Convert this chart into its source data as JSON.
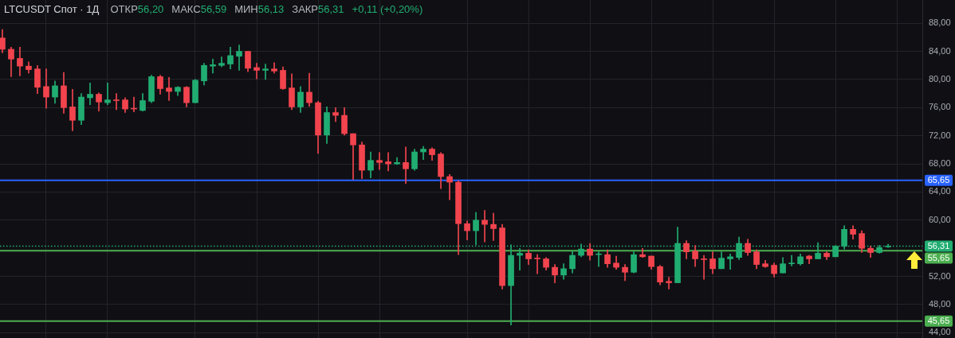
{
  "chart_data": {
    "type": "candlestick",
    "title": "LTCUSDT Спот · 1Д",
    "annotations": [
      "ОТКР56,20",
      "МАКС56,59",
      "МИН56,13",
      "ЗАКР56,31",
      "+0,11 (+0,20%)"
    ],
    "categories": [
      null,
      null,
      null,
      null,
      null,
      null,
      null,
      null,
      null,
      null,
      null,
      null,
      null,
      null,
      null,
      null,
      null,
      null,
      null,
      null,
      null,
      null,
      null,
      null,
      null,
      null,
      null,
      null,
      null,
      null,
      null,
      null,
      null,
      null,
      null,
      null,
      null,
      null,
      null,
      null,
      null,
      null,
      null,
      null,
      null,
      null,
      null,
      null,
      null,
      null,
      null,
      null,
      null,
      null,
      null,
      null,
      null,
      null,
      null,
      null,
      null,
      null,
      null,
      null,
      null,
      null,
      null,
      null,
      null,
      null,
      null,
      null,
      null,
      null,
      null,
      null,
      null,
      null,
      null,
      null,
      null,
      null,
      null,
      null,
      null,
      null,
      null,
      null,
      null,
      null,
      null,
      null,
      null,
      null,
      null,
      null,
      null,
      null,
      null,
      null,
      null,
      null
    ],
    "ohlc": [
      [
        85.9,
        87.1,
        83.8,
        84.3
      ],
      [
        84.3,
        84.6,
        80.4,
        82.9
      ],
      [
        83.0,
        84.6,
        80.5,
        81.9
      ],
      [
        81.9,
        82.5,
        80.9,
        81.4
      ],
      [
        81.5,
        82.0,
        78.0,
        78.9
      ],
      [
        79.0,
        81.5,
        75.9,
        77.5
      ],
      [
        77.5,
        79.8,
        76.6,
        79.1
      ],
      [
        79.1,
        81.0,
        75.2,
        76.0
      ],
      [
        76.1,
        78.6,
        72.7,
        74.2
      ],
      [
        74.2,
        78.0,
        73.6,
        77.5
      ],
      [
        77.4,
        79.5,
        76.4,
        77.9
      ],
      [
        77.9,
        78.1,
        75.5,
        76.8
      ],
      [
        76.7,
        79.5,
        76.4,
        77.1
      ],
      [
        77.1,
        78.0,
        75.7,
        77.0
      ],
      [
        77.1,
        77.4,
        75.3,
        75.8
      ],
      [
        75.9,
        77.5,
        75.4,
        75.8
      ],
      [
        75.6,
        78.0,
        75.5,
        77.0
      ],
      [
        76.9,
        80.6,
        76.7,
        80.4
      ],
      [
        80.4,
        80.6,
        77.9,
        78.7
      ],
      [
        78.8,
        80.3,
        77.0,
        78.3
      ],
      [
        78.3,
        79.0,
        77.7,
        78.9
      ],
      [
        78.9,
        79.0,
        76.1,
        76.7
      ],
      [
        76.7,
        80.0,
        76.7,
        79.9
      ],
      [
        79.8,
        82.3,
        79.2,
        82.0
      ],
      [
        81.9,
        82.9,
        80.9,
        82.1
      ],
      [
        82.0,
        83.2,
        81.8,
        82.3
      ],
      [
        82.2,
        84.6,
        81.5,
        83.4
      ],
      [
        83.3,
        84.9,
        81.3,
        84.0
      ],
      [
        84.0,
        84.0,
        81.1,
        81.6
      ],
      [
        81.7,
        82.3,
        80.1,
        81.3
      ],
      [
        81.3,
        82.2,
        80.0,
        81.5
      ],
      [
        81.5,
        82.4,
        80.9,
        81.2
      ],
      [
        81.3,
        81.8,
        78.6,
        78.7
      ],
      [
        78.8,
        80.8,
        75.7,
        76.1
      ],
      [
        76.1,
        79.0,
        75.3,
        78.2
      ],
      [
        78.2,
        80.9,
        76.2,
        76.7
      ],
      [
        76.7,
        76.9,
        69.5,
        72.1
      ],
      [
        72.1,
        76.1,
        70.9,
        75.3
      ],
      [
        75.3,
        76.0,
        74.0,
        74.9
      ],
      [
        74.9,
        76.0,
        72.1,
        72.3
      ],
      [
        72.3,
        72.3,
        65.8,
        70.7
      ],
      [
        70.7,
        71.1,
        65.9,
        67.1
      ],
      [
        67.1,
        69.7,
        66.0,
        68.5
      ],
      [
        68.5,
        69.6,
        67.2,
        68.2
      ],
      [
        68.3,
        69.6,
        67.0,
        68.0
      ],
      [
        68.0,
        68.9,
        67.9,
        68.2
      ],
      [
        68.2,
        70.4,
        65.2,
        67.3
      ],
      [
        67.3,
        70.1,
        67.1,
        69.7
      ],
      [
        69.7,
        70.5,
        68.6,
        70.1
      ],
      [
        70.1,
        70.3,
        68.5,
        69.3
      ],
      [
        69.4,
        69.6,
        64.5,
        66.2
      ],
      [
        66.2,
        66.5,
        62.9,
        65.4
      ],
      [
        65.4,
        65.6,
        55.1,
        59.5
      ],
      [
        59.5,
        59.9,
        57.2,
        58.5
      ],
      [
        58.5,
        61.1,
        56.5,
        60.0
      ],
      [
        60.0,
        61.4,
        56.9,
        59.4
      ],
      [
        59.4,
        61.0,
        57.1,
        58.8
      ],
      [
        58.9,
        59.4,
        50.2,
        50.7
      ],
      [
        50.7,
        56.5,
        45.1,
        55.0
      ],
      [
        55.0,
        56.0,
        52.9,
        55.3
      ],
      [
        55.3,
        55.8,
        53.7,
        54.5
      ],
      [
        54.6,
        55.1,
        52.4,
        54.5
      ],
      [
        54.5,
        54.7,
        52.9,
        53.3
      ],
      [
        53.3,
        53.7,
        51.1,
        52.2
      ],
      [
        52.2,
        53.8,
        51.6,
        53.1
      ],
      [
        53.1,
        55.6,
        52.5,
        55.0
      ],
      [
        55.0,
        56.6,
        54.8,
        55.9
      ],
      [
        55.9,
        56.7,
        54.3,
        55.0
      ],
      [
        55.1,
        55.5,
        53.4,
        55.2
      ],
      [
        55.1,
        55.8,
        53.3,
        53.8
      ],
      [
        53.9,
        54.9,
        53.0,
        53.3
      ],
      [
        53.3,
        53.7,
        51.4,
        52.6
      ],
      [
        52.6,
        55.5,
        52.5,
        55.1
      ],
      [
        55.1,
        56.0,
        54.7,
        54.8
      ],
      [
        54.9,
        54.9,
        53.0,
        53.4
      ],
      [
        53.4,
        53.6,
        50.8,
        51.2
      ],
      [
        51.3,
        51.9,
        50.2,
        51.1
      ],
      [
        51.1,
        59.0,
        51.1,
        56.7
      ],
      [
        56.7,
        57.1,
        54.5,
        55.5
      ],
      [
        55.6,
        56.4,
        53.4,
        54.5
      ],
      [
        54.5,
        55.0,
        51.6,
        54.4
      ],
      [
        54.5,
        55.5,
        52.4,
        53.1
      ],
      [
        53.1,
        55.5,
        53.1,
        54.6
      ],
      [
        54.5,
        55.2,
        53.0,
        54.8
      ],
      [
        54.7,
        57.6,
        54.4,
        56.7
      ],
      [
        56.7,
        57.3,
        55.0,
        55.4
      ],
      [
        55.5,
        55.8,
        53.1,
        53.7
      ],
      [
        53.8,
        54.3,
        53.3,
        53.4
      ],
      [
        53.6,
        53.9,
        51.9,
        52.4
      ],
      [
        52.5,
        54.7,
        52.5,
        53.8
      ],
      [
        53.8,
        55.0,
        53.5,
        53.9
      ],
      [
        53.8,
        55.2,
        53.6,
        54.8
      ],
      [
        54.9,
        55.0,
        53.8,
        54.5
      ],
      [
        54.5,
        56.8,
        54.5,
        55.3
      ],
      [
        55.3,
        55.5,
        54.4,
        54.8
      ],
      [
        54.8,
        56.4,
        54.8,
        56.3
      ],
      [
        56.3,
        59.2,
        55.9,
        58.7
      ],
      [
        58.7,
        59.2,
        57.3,
        58.0
      ],
      [
        58.1,
        58.5,
        55.4,
        56.0
      ],
      [
        56.0,
        56.3,
        54.7,
        55.4
      ],
      [
        55.4,
        56.4,
        55.3,
        56.1
      ],
      [
        56.2,
        56.59,
        56.13,
        56.31
      ]
    ],
    "colors": [
      "#f2444e",
      "#f2444e",
      "#f2444e",
      "#f2444e",
      "#f2444e",
      "#f2444e",
      "#21ad72",
      "#f2444e",
      "#f2444e",
      "#21ad72",
      "#21ad72",
      "#f2444e",
      "#21ad72",
      "#f2444e",
      "#f2444e",
      "#f2444e",
      "#21ad72",
      "#21ad72",
      "#f2444e",
      "#f2444e",
      "#21ad72",
      "#f2444e",
      "#21ad72",
      "#21ad72",
      "#21ad72",
      "#21ad72",
      "#21ad72",
      "#21ad72",
      "#f2444e",
      "#f2444e",
      "#21ad72",
      "#f2444e",
      "#f2444e",
      "#f2444e",
      "#21ad72",
      "#f2444e",
      "#f2444e",
      "#21ad72",
      "#f2444e",
      "#f2444e",
      "#f2444e",
      "#f2444e",
      "#21ad72",
      "#f2444e",
      "#f2444e",
      "#21ad72",
      "#f2444e",
      "#21ad72",
      "#21ad72",
      "#f2444e",
      "#f2444e",
      "#f2444e",
      "#f2444e",
      "#f2444e",
      "#21ad72",
      "#f2444e",
      "#f2444e",
      "#f2444e",
      "#21ad72",
      "#21ad72",
      "#f2444e",
      "#f2444e",
      "#f2444e",
      "#f2444e",
      "#21ad72",
      "#21ad72",
      "#21ad72",
      "#f2444e",
      "#21ad72",
      "#f2444e",
      "#f2444e",
      "#f2444e",
      "#21ad72",
      "#f2444e",
      "#f2444e",
      "#f2444e",
      "#f2444e",
      "#21ad72",
      "#f2444e",
      "#f2444e",
      "#f2444e",
      "#f2444e",
      "#21ad72",
      "#21ad72",
      "#21ad72",
      "#f2444e",
      "#f2444e",
      "#f2444e",
      "#f2444e",
      "#21ad72",
      "#21ad72",
      "#21ad72",
      "#f2444e",
      "#21ad72",
      "#f2444e",
      "#21ad72",
      "#21ad72",
      "#f2444e",
      "#f2444e",
      "#f2444e",
      "#21ad72",
      "#21ad72"
    ],
    "ylim": [
      43.25,
      91.3
    ],
    "yticks": [
      {
        "value": 44,
        "label": "44,00"
      },
      {
        "value": 48,
        "label": "48,00"
      },
      {
        "value": 52,
        "label": "52,00"
      },
      {
        "value": 60,
        "label": "60,00"
      },
      {
        "value": 64,
        "label": "64,00"
      },
      {
        "value": 68,
        "label": "68,00"
      },
      {
        "value": 72,
        "label": "72,00"
      },
      {
        "value": 76,
        "label": "76,00"
      },
      {
        "value": 80,
        "label": "80,00"
      },
      {
        "value": 84,
        "label": "84,00"
      },
      {
        "value": 88,
        "label": "88,00"
      }
    ],
    "ref_lines": [
      {
        "axis": "y",
        "value": 65.65,
        "label": "65,65",
        "color": "#2962ff",
        "line_style": "solid"
      },
      {
        "axis": "y",
        "value": 56.31,
        "label": "56,31",
        "color": "#21ad72",
        "line_style": "dotted"
      },
      {
        "axis": "y",
        "value": 55.65,
        "label": "55,65",
        "color": "#4caf50",
        "line_style": "solid"
      },
      {
        "axis": "y",
        "value": 45.65,
        "label": "45,65",
        "color": "#4caf50",
        "line_style": "solid"
      }
    ],
    "grid": true,
    "tick_labels": "y"
  }
}
